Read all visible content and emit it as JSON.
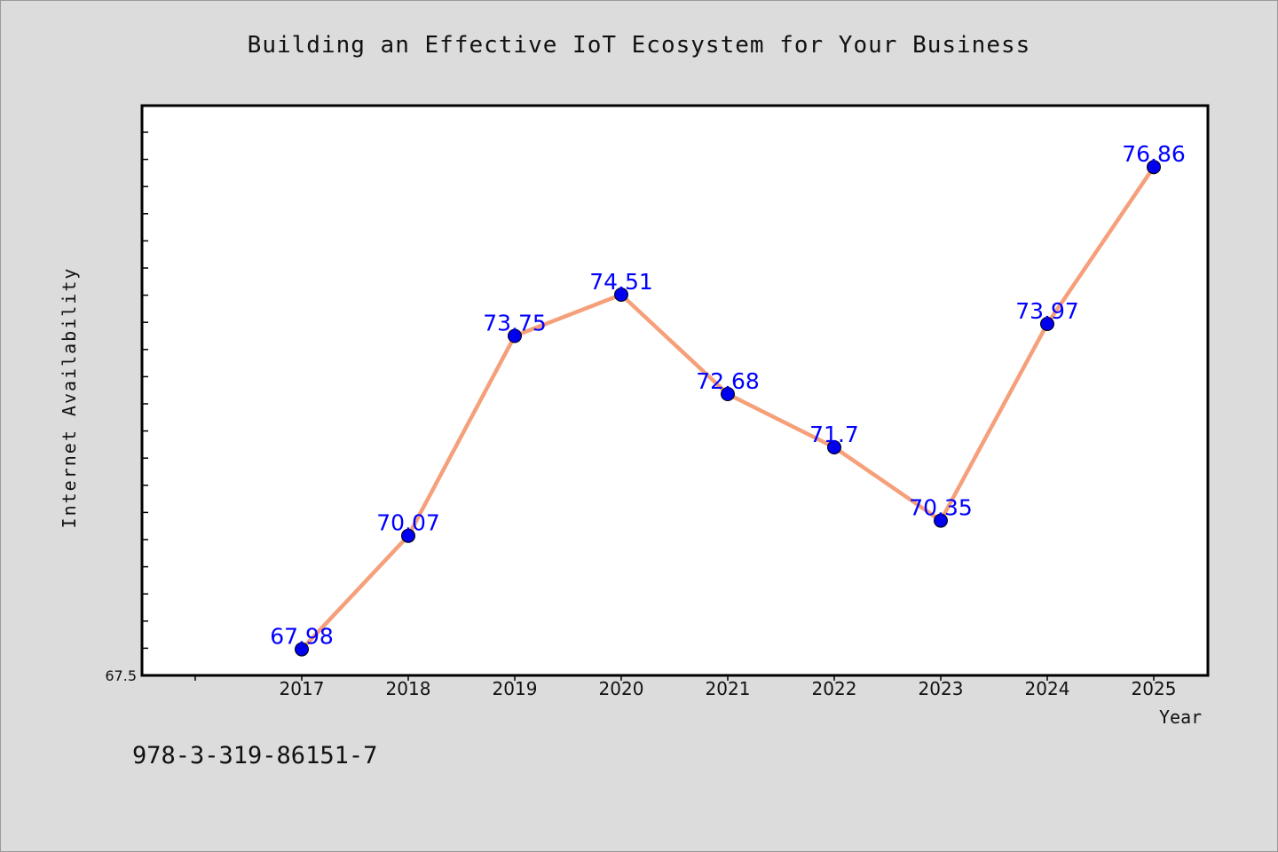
{
  "page": {
    "footer_text": "978-3-319-86151-7"
  },
  "chart_data": {
    "type": "line",
    "title": "Building an Effective IoT Ecosystem for Your Business",
    "xlabel": "Year",
    "ylabel": "Internet Availability",
    "categories": [
      "2017",
      "2018",
      "2019",
      "2020",
      "2021",
      "2022",
      "2023",
      "2024",
      "2025"
    ],
    "series": [
      {
        "values": [
          67.98,
          70.07,
          73.75,
          74.51,
          72.68,
          71.7,
          70.35,
          73.97,
          76.86
        ],
        "line_color": "#f5a07a",
        "marker_color": "#0000ee",
        "label_color": "#0000ff"
      }
    ],
    "ylim": [
      67.5,
      78.0
    ],
    "y_tick_labels": [
      "67.5"
    ],
    "grid": false,
    "legend": "none",
    "data_labels": true
  }
}
